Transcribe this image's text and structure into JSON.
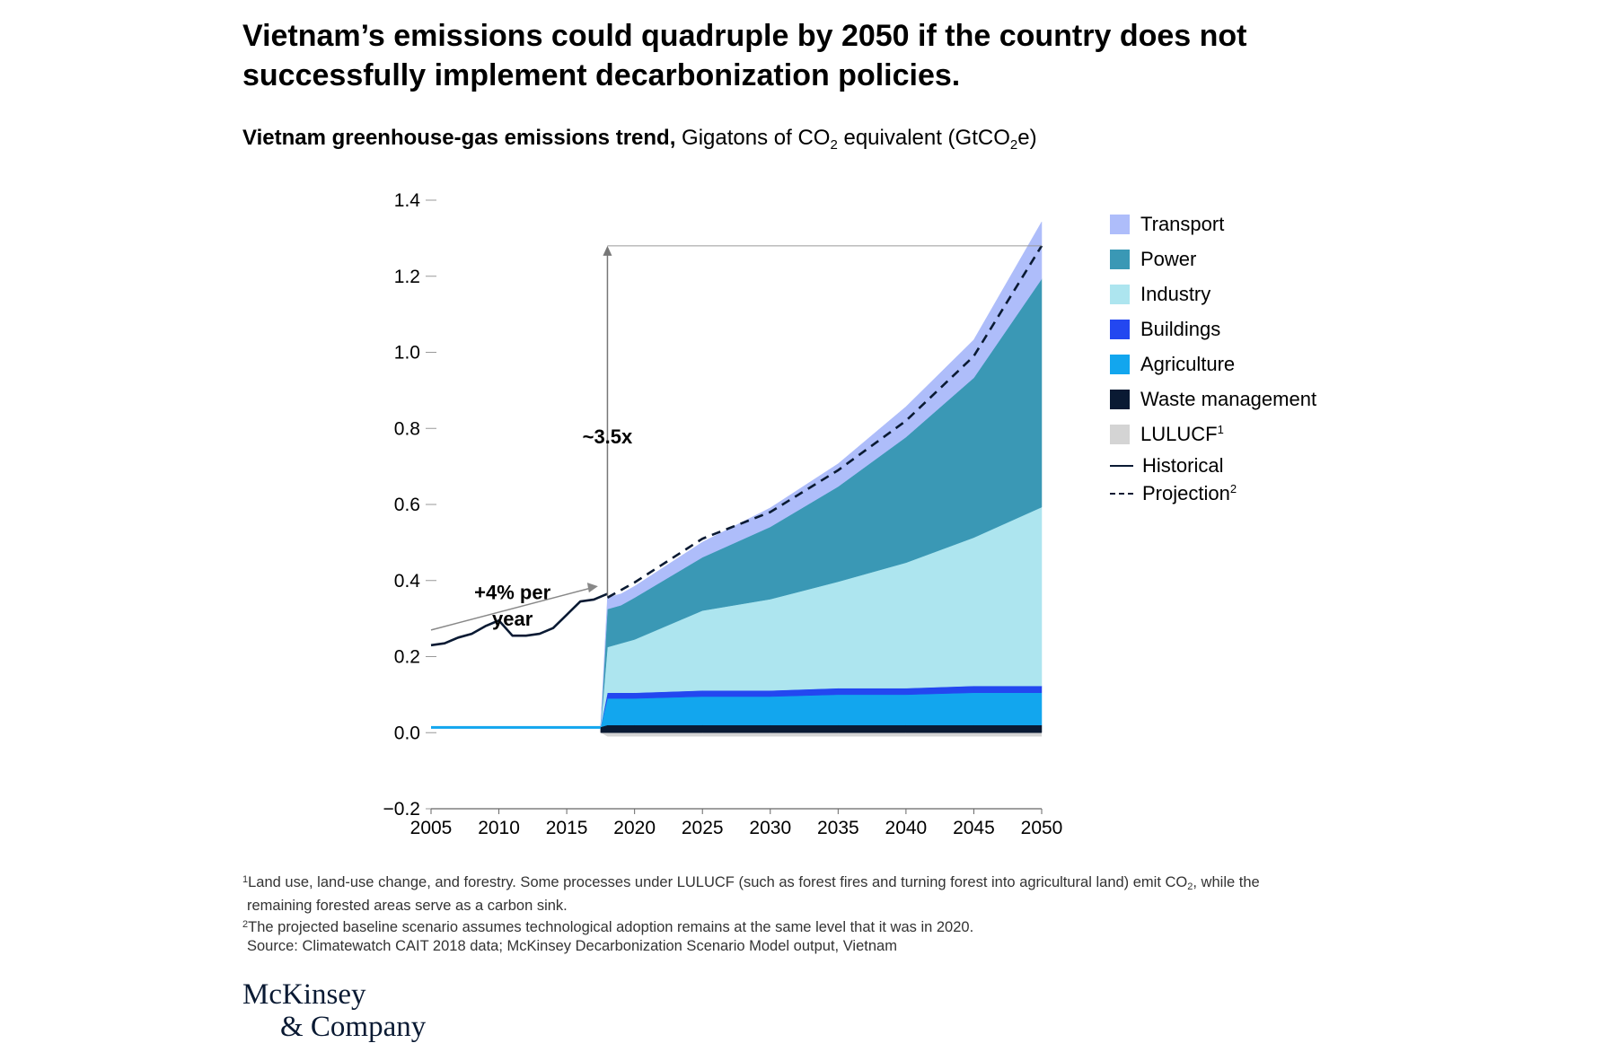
{
  "title": "Vietnam’s emissions could quadruple by 2050 if the country does not successfully implement decarbonization policies.",
  "subtitle": {
    "bold": "Vietnam greenhouse-gas emissions trend,",
    "unit_pre": " Gigatons of CO",
    "unit_sub1": "2",
    "unit_mid": " equivalent (GtCO",
    "unit_sub2": "2",
    "unit_post": "e)"
  },
  "chart_data": {
    "type": "area",
    "title": "Vietnam greenhouse-gas emissions trend",
    "ylabel": "Gigatons of CO2 equivalent (GtCO2e)",
    "xlim": [
      2005,
      2050
    ],
    "ylim": [
      -0.2,
      1.4
    ],
    "x_ticks": [
      "2005",
      "2010",
      "2015",
      "2020",
      "2025",
      "2030",
      "2035",
      "2040",
      "2045",
      "2050"
    ],
    "y_ticks": [
      "1.4",
      "1.2",
      "1.0",
      "0.8",
      "0.6",
      "0.4",
      "0.2",
      "0.0",
      "−0.2"
    ],
    "projection_x": [
      2018,
      2019,
      2020,
      2025,
      2030,
      2035,
      2040,
      2045,
      2050
    ],
    "stacked_series": [
      {
        "name": "LULUCF",
        "color": "#d4d4d4",
        "values": [
          -0.01,
          -0.01,
          -0.01,
          -0.01,
          -0.01,
          -0.01,
          -0.01,
          -0.01,
          -0.01
        ]
      },
      {
        "name": "Waste management",
        "color": "#0a1a33",
        "values": [
          0.02,
          0.02,
          0.02,
          0.02,
          0.02,
          0.02,
          0.02,
          0.02,
          0.02
        ]
      },
      {
        "name": "Agriculture",
        "color": "#12a6ee",
        "values": [
          0.07,
          0.07,
          0.07,
          0.075,
          0.075,
          0.08,
          0.08,
          0.085,
          0.085
        ]
      },
      {
        "name": "Buildings",
        "color": "#2347f0",
        "values": [
          0.015,
          0.015,
          0.015,
          0.016,
          0.016,
          0.017,
          0.017,
          0.018,
          0.018
        ]
      },
      {
        "name": "Industry",
        "color": "#ade5ef",
        "values": [
          0.12,
          0.13,
          0.14,
          0.21,
          0.24,
          0.28,
          0.33,
          0.39,
          0.47
        ]
      },
      {
        "name": "Power",
        "color": "#3a98b5",
        "values": [
          0.1,
          0.1,
          0.11,
          0.14,
          0.19,
          0.25,
          0.33,
          0.42,
          0.6
        ]
      },
      {
        "name": "Transport",
        "color": "#aebdfa",
        "values": [
          0.03,
          0.03,
          0.03,
          0.04,
          0.05,
          0.06,
          0.08,
          0.1,
          0.15
        ]
      }
    ],
    "pre_projection_level": 0.015,
    "historical": {
      "name": "Historical",
      "x": [
        2005,
        2006,
        2007,
        2008,
        2009,
        2010,
        2011,
        2012,
        2013,
        2014,
        2015,
        2016,
        2017,
        2018
      ],
      "values": [
        0.23,
        0.235,
        0.25,
        0.26,
        0.28,
        0.295,
        0.255,
        0.255,
        0.26,
        0.275,
        0.31,
        0.345,
        0.35,
        0.365
      ]
    },
    "projection": {
      "name": "Projection",
      "x": [
        2018,
        2019,
        2020,
        2025,
        2030,
        2035,
        2040,
        2045,
        2050
      ],
      "values": [
        0.355,
        0.375,
        0.395,
        0.51,
        0.58,
        0.69,
        0.82,
        0.99,
        1.28
      ]
    },
    "annotations": {
      "multiplier": "~3.5x",
      "growth_line1": "+4% per",
      "growth_line2": "year"
    }
  },
  "legend": [
    {
      "label": "Transport",
      "sup": "",
      "color": "#aebdfa",
      "kind": "swatch"
    },
    {
      "label": "Power",
      "sup": "",
      "color": "#3a98b5",
      "kind": "swatch"
    },
    {
      "label": "Industry",
      "sup": "",
      "color": "#ade5ef",
      "kind": "swatch"
    },
    {
      "label": "Buildings",
      "sup": "",
      "color": "#2347f0",
      "kind": "swatch"
    },
    {
      "label": "Agriculture",
      "sup": "",
      "color": "#12a6ee",
      "kind": "swatch"
    },
    {
      "label": "Waste management",
      "sup": "",
      "color": "#0a1a33",
      "kind": "swatch"
    },
    {
      "label": "LULUCF",
      "sup": "1",
      "color": "#d4d4d4",
      "kind": "swatch"
    },
    {
      "label": "Historical",
      "sup": "",
      "color": "#0a1a33",
      "kind": "line"
    },
    {
      "label": "Projection",
      "sup": "2",
      "color": "#0a1a33",
      "kind": "dash"
    }
  ],
  "footnotes": {
    "f1_sup": "1",
    "f1_text": "Land use, land-use change, and forestry. Some processes under LULUCF (such as forest fires and turning forest into agricultural land) emit CO",
    "f1_sub": "2",
    "f1_tail": ", while the",
    "f1_line2": "remaining forested areas serve as a carbon sink.",
    "f2_sup": "2",
    "f2_text": "The projected baseline scenario assumes technological adoption remains at the same level that it was in 2020.",
    "source": "Source: Climatewatch CAIT 2018 data; McKinsey Decarbonization Scenario Model output, Vietnam"
  },
  "logo": {
    "line1": "McKinsey",
    "line2": "& Company"
  }
}
